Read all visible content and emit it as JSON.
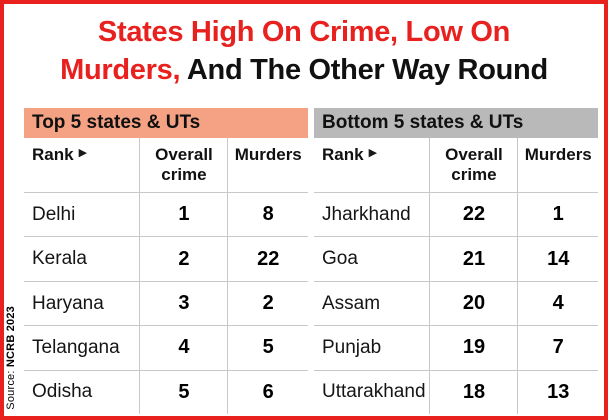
{
  "title": {
    "line1": "States High On Crime, Low On",
    "line2_red": "Murders,",
    "line2_black": " And The Other Way Round"
  },
  "source": {
    "label": "Source: ",
    "value": "NCRB 2023"
  },
  "colors": {
    "accent_red": "#e8201e",
    "top_panel_header_bg": "#f5a284",
    "bottom_panel_header_bg": "#b9b9b9",
    "grid_line": "#c8c8c8"
  },
  "panels": [
    {
      "header": "Top 5 states & UTs",
      "columns": {
        "rank": "Rank",
        "rank_arrow": "▶",
        "overall": "Overall crime",
        "murders": "Murders"
      },
      "rows": [
        {
          "state": "Delhi",
          "overall": "1",
          "murders": "8"
        },
        {
          "state": "Kerala",
          "overall": "2",
          "murders": "22"
        },
        {
          "state": "Haryana",
          "overall": "3",
          "murders": "2"
        },
        {
          "state": "Telangana",
          "overall": "4",
          "murders": "5"
        },
        {
          "state": "Odisha",
          "overall": "5",
          "murders": "6"
        }
      ]
    },
    {
      "header": "Bottom 5 states & UTs",
      "columns": {
        "rank": "Rank",
        "rank_arrow": "▶",
        "overall": "Overall crime",
        "murders": "Murders"
      },
      "rows": [
        {
          "state": "Jharkhand",
          "overall": "22",
          "murders": "1"
        },
        {
          "state": "Goa",
          "overall": "21",
          "murders": "14"
        },
        {
          "state": "Assam",
          "overall": "20",
          "murders": "4"
        },
        {
          "state": "Punjab",
          "overall": "19",
          "murders": "7"
        },
        {
          "state": "Uttarakhand",
          "overall": "18",
          "murders": "13"
        }
      ]
    }
  ],
  "chart_data": [
    {
      "type": "table",
      "title": "Top 5 states & UTs",
      "columns": [
        "Rank",
        "Overall crime",
        "Murders"
      ],
      "rows": [
        [
          "Delhi",
          1,
          8
        ],
        [
          "Kerala",
          2,
          22
        ],
        [
          "Haryana",
          3,
          2
        ],
        [
          "Telangana",
          4,
          5
        ],
        [
          "Odisha",
          5,
          6
        ]
      ]
    },
    {
      "type": "table",
      "title": "Bottom 5 states & UTs",
      "columns": [
        "Rank",
        "Overall crime",
        "Murders"
      ],
      "rows": [
        [
          "Jharkhand",
          22,
          1
        ],
        [
          "Goa",
          21,
          14
        ],
        [
          "Assam",
          20,
          4
        ],
        [
          "Punjab",
          19,
          7
        ],
        [
          "Uttarakhand",
          18,
          13
        ]
      ]
    }
  ]
}
